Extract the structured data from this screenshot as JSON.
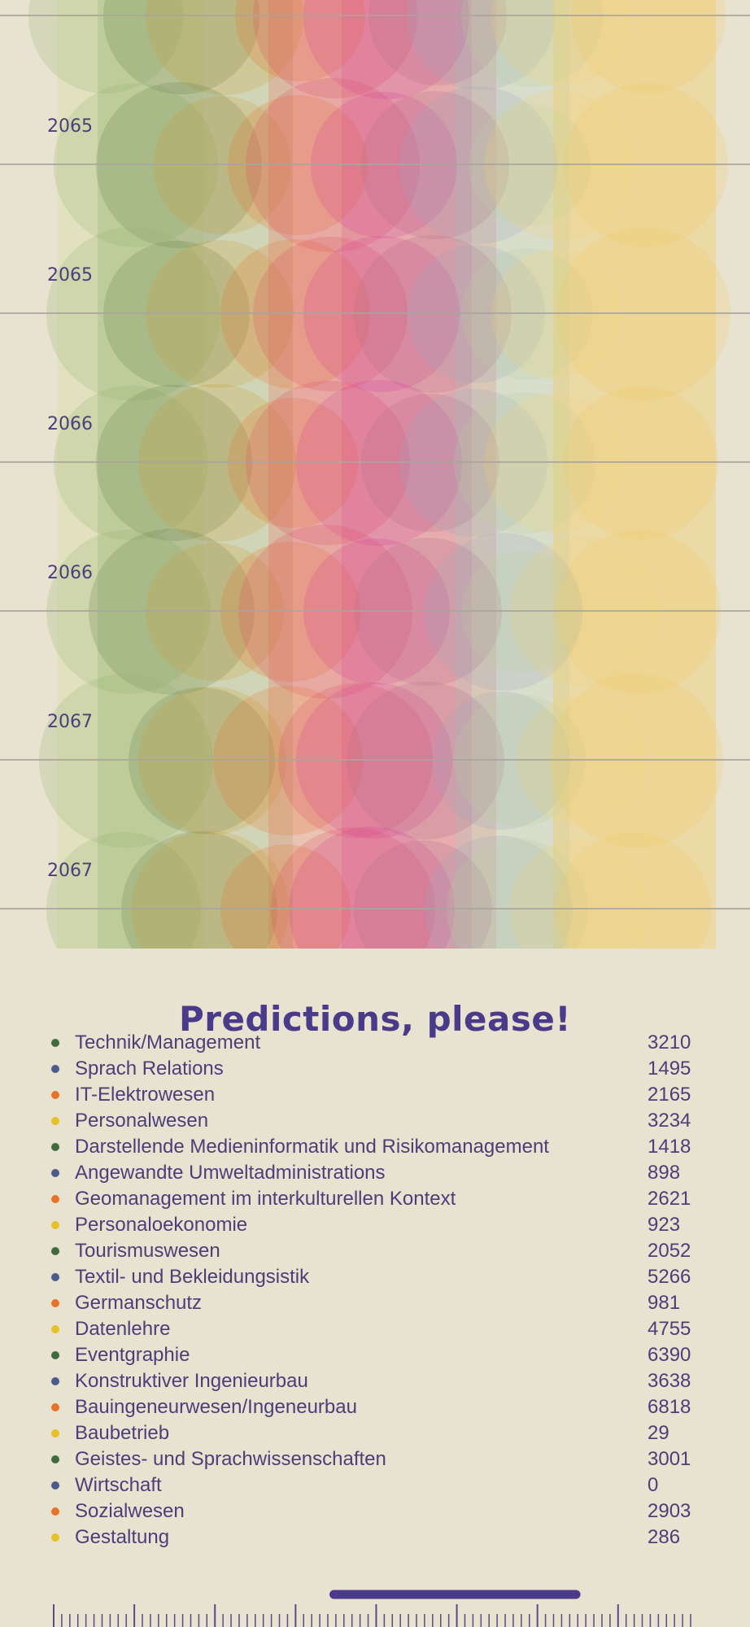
{
  "timeline": {
    "rows": [
      {
        "year_label": "2065"
      },
      {
        "year_label": "2065"
      },
      {
        "year_label": "2066"
      },
      {
        "year_label": "2066"
      },
      {
        "year_label": "2067"
      },
      {
        "year_label": "2067"
      }
    ]
  },
  "title": "Predictions, please!",
  "legend": {
    "items": [
      {
        "label": "Technik/Management",
        "value": "3210",
        "color": "#3f6b3a"
      },
      {
        "label": "Sprach Relations",
        "value": "1495",
        "color": "#4a5a8c"
      },
      {
        "label": "IT-Elektrowesen",
        "value": "2165",
        "color": "#e8722a"
      },
      {
        "label": "Personalwesen",
        "value": "3234",
        "color": "#e6c227"
      },
      {
        "label": "Darstellende Medieninformatik und Risikomanagement",
        "value": "1418",
        "color": "#3f6b3a"
      },
      {
        "label": "Angewandte Umweltadministrations",
        "value": "898",
        "color": "#4a5a8c"
      },
      {
        "label": "Geomanagement im interkulturellen Kontext",
        "value": "2621",
        "color": "#e8722a"
      },
      {
        "label": "Personaloekonomie",
        "value": "923",
        "color": "#e6c227"
      },
      {
        "label": "Tourismuswesen",
        "value": "2052",
        "color": "#3f6b3a"
      },
      {
        "label": "Textil- und Bekleidungsistik",
        "value": "5266",
        "color": "#4a5a8c"
      },
      {
        "label": "Germanschutz",
        "value": "981",
        "color": "#e8722a"
      },
      {
        "label": "Datenlehre",
        "value": "4755",
        "color": "#e6c227"
      },
      {
        "label": "Eventgraphie",
        "value": "6390",
        "color": "#3f6b3a"
      },
      {
        "label": "Konstruktiver Ingenieurbau",
        "value": "3638",
        "color": "#4a5a8c"
      },
      {
        "label": "Bauingeneurwesen/Ingeneurbau",
        "value": "6818",
        "color": "#e8722a"
      },
      {
        "label": "Baubetrieb",
        "value": "29",
        "color": "#e6c227"
      },
      {
        "label": "Geistes- und Sprachwissenschaften",
        "value": "3001",
        "color": "#3f6b3a"
      },
      {
        "label": "Wirtschaft",
        "value": "0",
        "color": "#4a5a8c"
      },
      {
        "label": "Sozialwesen",
        "value": "2903",
        "color": "#e8722a"
      },
      {
        "label": "Gestaltung",
        "value": "286",
        "color": "#e6c227"
      }
    ]
  },
  "colors": {
    "background": "#e8e2d0",
    "text": "#4a3f7a",
    "accent": "#4a3a8a",
    "gridline": "#a9a49c"
  },
  "scrubber": {
    "range_start_fraction": 0.44,
    "range_end_fraction": 0.82
  }
}
